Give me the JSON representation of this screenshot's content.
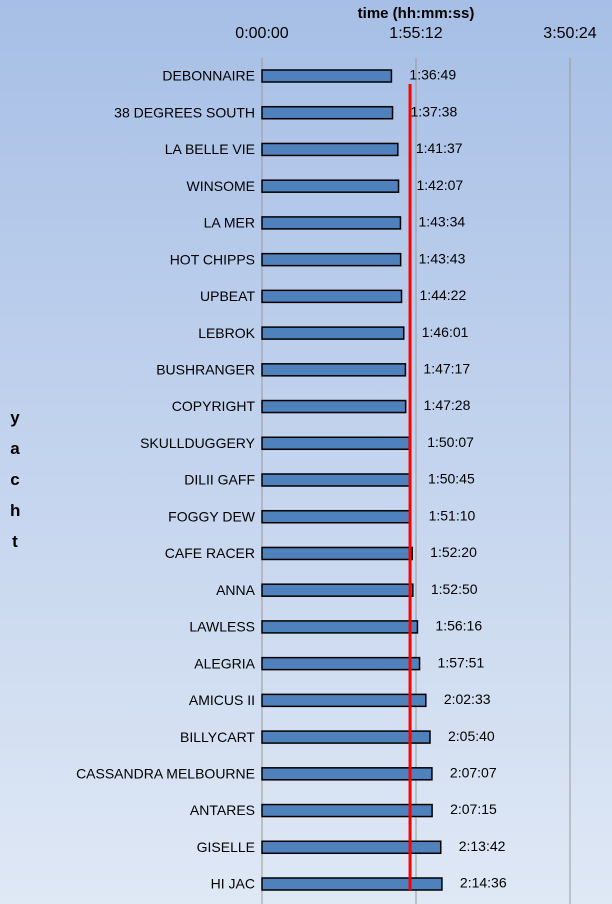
{
  "chart_data": {
    "type": "hbar",
    "x_label": "time (hh:mm:ss)",
    "y_label": "yacht",
    "categories": [
      "DEBONNAIRE",
      "38 DEGREES SOUTH",
      "LA BELLE VIE",
      "WINSOME",
      "LA MER",
      "HOT CHIPPS",
      "UPBEAT",
      "LEBROK",
      "BUSHRANGER",
      "COPYRIGHT",
      "SKULLDUGGERY",
      "DILII GAFF",
      "FOGGY DEW",
      "CAFE RACER",
      "ANNA",
      "LAWLESS",
      "ALEGRIA",
      "AMICUS II",
      "BILLYCART",
      "CASSANDRA MELBOURNE",
      "ANTARES",
      "GISELLE",
      "HI JAC"
    ],
    "values": [
      5809,
      5858,
      6097,
      6127,
      6214,
      6223,
      6262,
      6361,
      6437,
      6448,
      6607,
      6645,
      6670,
      6740,
      6770,
      6976,
      7071,
      7353,
      7540,
      7627,
      7635,
      8022,
      8076
    ],
    "value_labels": [
      "1:36:49",
      "1:37:38",
      "1:41:37",
      "1:42:07",
      "1:43:34",
      "1:43:43",
      "1:44:22",
      "1:46:01",
      "1:47:17",
      "1:47:28",
      "1:50:07",
      "1:50:45",
      "1:51:10",
      "1:52:20",
      "1:52:50",
      "1:56:16",
      "1:57:51",
      "2:02:33",
      "2:05:40",
      "2:07:07",
      "2:07:15",
      "2:13:42",
      "2:14:36"
    ],
    "color": "#4f81bd",
    "xlim": [
      0,
      13824
    ],
    "xticks": [
      {
        "value": 0,
        "label": "0:00:00"
      },
      {
        "value": 6912,
        "label": "1:55:12"
      },
      {
        "value": 13824,
        "label": "3:50:24"
      }
    ],
    "grid": true,
    "reference_line": {
      "value": 6645,
      "color": "#ff0000"
    }
  }
}
